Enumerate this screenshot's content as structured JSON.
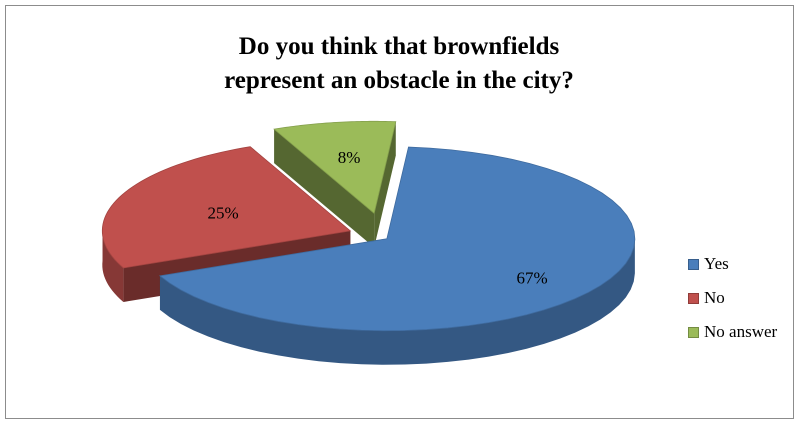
{
  "chart_data": {
    "type": "pie",
    "title_lines": [
      "Do you think that brownfields",
      "represent an obstacle in the city?"
    ],
    "categories": [
      "Yes",
      "No",
      "No answer"
    ],
    "values": [
      67,
      25,
      8
    ],
    "data_labels": [
      "67%",
      "25%",
      "8%"
    ],
    "colors": [
      "#4a7ebb",
      "#c0504d",
      "#9bbb59"
    ],
    "legend_position": "right",
    "style": "3d-exploded"
  }
}
